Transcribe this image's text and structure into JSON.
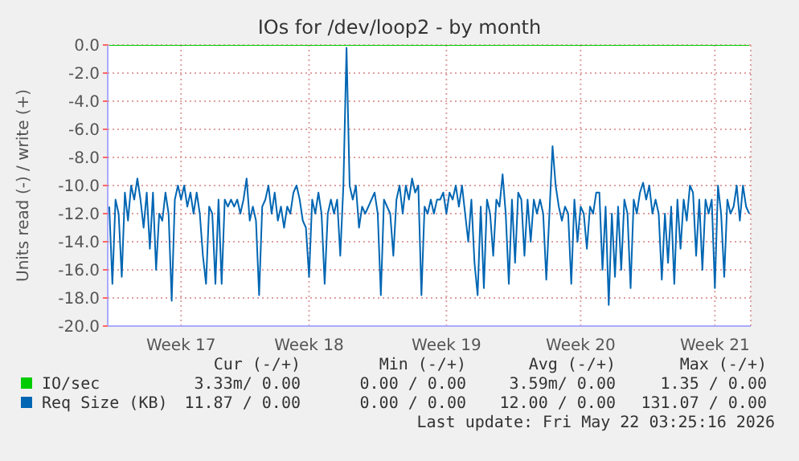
{
  "chart_data": {
    "type": "line",
    "title": "IOs for /dev/loop2 - by month",
    "ylabel": "Units read (-) / write (+)",
    "categories": [
      null,
      null,
      null,
      null,
      null,
      null,
      null,
      null,
      null,
      null,
      null,
      null,
      null,
      null,
      null,
      null,
      null,
      null,
      null,
      null,
      null,
      null,
      null,
      "Week 17",
      null,
      null,
      null,
      null,
      null,
      null,
      null,
      null,
      null,
      null,
      null,
      null,
      null,
      null,
      null,
      null,
      null,
      null,
      null,
      null,
      null,
      null,
      null,
      null,
      null,
      null,
      null,
      null,
      null,
      null,
      null,
      null,
      null,
      null,
      null,
      null,
      null,
      null,
      null,
      null,
      "Week 18",
      null,
      null,
      null,
      null,
      null,
      null,
      null,
      null,
      null,
      null,
      null,
      null,
      null,
      null,
      null,
      null,
      null,
      null,
      null,
      null,
      null,
      null,
      null,
      null,
      null,
      null,
      null,
      null,
      null,
      null,
      null,
      null,
      null,
      null,
      null,
      null,
      null,
      null,
      null,
      null,
      null,
      null,
      null,
      "Week 19",
      null,
      null,
      null,
      null,
      null,
      null,
      null,
      null,
      null,
      null,
      null,
      null,
      null,
      null,
      null,
      null,
      null,
      null,
      null,
      null,
      null,
      null,
      null,
      null,
      null,
      null,
      null,
      null,
      null,
      null,
      null,
      null,
      null,
      null,
      null,
      null,
      null,
      null,
      null,
      null,
      null,
      null,
      "Week 20",
      null,
      null,
      null,
      null,
      null,
      null,
      null,
      null,
      null,
      null,
      null,
      null,
      null,
      null,
      null,
      null,
      null,
      null,
      null,
      null,
      null,
      null,
      null,
      null,
      null,
      null,
      null,
      null,
      null,
      null,
      null,
      null,
      null,
      null,
      null,
      null,
      null,
      null,
      null,
      null,
      null,
      null,
      "Week 21",
      null,
      null,
      null,
      null,
      null,
      null,
      null,
      null,
      null,
      null,
      null
    ],
    "ylim": [
      -20,
      0
    ],
    "yticks": [
      {
        "value": -20,
        "label": "-20.0"
      },
      {
        "value": -18,
        "label": "-18.0"
      },
      {
        "value": -16,
        "label": "-16.0"
      },
      {
        "value": -14,
        "label": "-14.0"
      },
      {
        "value": -12,
        "label": "-12.0"
      },
      {
        "value": -10,
        "label": "-10.0"
      },
      {
        "value": -8,
        "label": "-8.0"
      },
      {
        "value": -6,
        "label": "-6.0"
      },
      {
        "value": -4,
        "label": "-4.0"
      },
      {
        "value": -2,
        "label": "-2.0"
      },
      {
        "value": 0,
        "label": "0.0"
      }
    ],
    "grid": true,
    "legend": "bottom",
    "marker": "none",
    "line_style": "solid",
    "series": [
      {
        "name": "IO/sec",
        "color": "#00cc00",
        "values": [
          0,
          0,
          0,
          0,
          0,
          0,
          0,
          0,
          0,
          0,
          0,
          0,
          0,
          0,
          0,
          0,
          0,
          0,
          0,
          0,
          0,
          0,
          0,
          0,
          0,
          0,
          0,
          0,
          0,
          0,
          0,
          0,
          0,
          0,
          0,
          0,
          0,
          0,
          0,
          0,
          0,
          0,
          0,
          0,
          0,
          0,
          0,
          0,
          0,
          0,
          0,
          0,
          0,
          0,
          0,
          0,
          0,
          0,
          0,
          0,
          0,
          0,
          0,
          0,
          0,
          0,
          0,
          0,
          0,
          0,
          0,
          0,
          0,
          0,
          0,
          0,
          0,
          0,
          0,
          0,
          0,
          0,
          0,
          0,
          0,
          0,
          0,
          0,
          0,
          0,
          0,
          0,
          0,
          0,
          0,
          0,
          0,
          0,
          0,
          0,
          0,
          0,
          0,
          0,
          0,
          0,
          0,
          0,
          0,
          0,
          0,
          0,
          0,
          0,
          0,
          0,
          0,
          0,
          0,
          0,
          0,
          0,
          0,
          0,
          0,
          0,
          0,
          0,
          0,
          0,
          0,
          0,
          0,
          0,
          0,
          0,
          0,
          0,
          0,
          0,
          0,
          0,
          0,
          0,
          0,
          0,
          0,
          0,
          0,
          0,
          0,
          0,
          0,
          0,
          0,
          0,
          0,
          0,
          0,
          0,
          0,
          0,
          0,
          0,
          0,
          0,
          0,
          0,
          0,
          0,
          0,
          0,
          0,
          0,
          0,
          0,
          0,
          0,
          0,
          0,
          0,
          0,
          0,
          0,
          0,
          0,
          0,
          0,
          0,
          0,
          0,
          0,
          0,
          0,
          0,
          0,
          0,
          0,
          0,
          0,
          0,
          0,
          0,
          0,
          0,
          0
        ]
      },
      {
        "name": "Req Size (KB)",
        "color": "#0066b3",
        "values": [
          -11.5,
          -17,
          -11,
          -12,
          -16.5,
          -10.5,
          -12.5,
          -10,
          -11,
          -9.5,
          -11,
          -13,
          -10.5,
          -14.5,
          -10.5,
          -16,
          -12,
          -12.5,
          -10.5,
          -12,
          -18.2,
          -11,
          -10,
          -11,
          -10,
          -11.5,
          -10.5,
          -12,
          -10.5,
          -12,
          -15,
          -17,
          -11.5,
          -12,
          -17,
          -11,
          -17,
          -11,
          -11.5,
          -11,
          -11.5,
          -11,
          -12,
          -11,
          -9.5,
          -12.5,
          -11.5,
          -12.5,
          -17.8,
          -11.5,
          -11,
          -10,
          -12,
          -10.5,
          -12.5,
          -11.5,
          -13,
          -11.5,
          -12,
          -10.5,
          -10,
          -11,
          -12.5,
          -13,
          -16.5,
          -11,
          -12,
          -10.5,
          -12,
          -17,
          -12,
          -11,
          -12,
          -11,
          -15,
          -10,
          -0.2,
          -10,
          -11,
          -10,
          -13,
          -11.5,
          -12,
          -11.5,
          -11,
          -10.5,
          -12,
          -17.8,
          -11,
          -11.5,
          -12,
          -15,
          -11,
          -10,
          -12,
          -10,
          -11,
          -9.5,
          -10.5,
          -10,
          -17.8,
          -11.5,
          -12,
          -11,
          -12,
          -11,
          -11,
          -10.5,
          -12,
          -10.5,
          -11,
          -10,
          -11.5,
          -10,
          -12,
          -14,
          -11,
          -15.5,
          -17.8,
          -11.5,
          -17.3,
          -11,
          -12,
          -15,
          -11,
          -11.5,
          -9.2,
          -12,
          -17,
          -11,
          -15.5,
          -10.5,
          -11,
          -15,
          -11,
          -14,
          -11,
          -12,
          -11,
          -12,
          -16.7,
          -12,
          -7.2,
          -10,
          -11.5,
          -12.5,
          -11.5,
          -12,
          -17,
          -11,
          -14,
          -11.5,
          -12,
          -14.5,
          -11.5,
          -12,
          -10.5,
          -10.5,
          -16,
          -11.5,
          -18.5,
          -12,
          -16.5,
          -11.5,
          -16,
          -11,
          -12,
          -17.3,
          -11,
          -12,
          -10.5,
          -9.8,
          -11,
          -10,
          -12,
          -11,
          -12,
          -16.7,
          -12,
          -15.5,
          -11.5,
          -17,
          -11,
          -14.5,
          -11,
          -12.5,
          -10,
          -10.5,
          -15,
          -11,
          -16,
          -11,
          -12,
          -11,
          -17.3,
          -10,
          -12,
          -16.5,
          -11,
          -12,
          -11.5,
          -10,
          -12.5,
          -10,
          -11.5,
          -12
        ]
      }
    ],
    "annotations": [
      "Cur (-/+)",
      "Min (-/+)",
      "Avg (-/+)",
      "Max (-/+)",
      "3.33m/ 0.00",
      "0.00 / 0.00",
      "3.59m/ 0.00",
      "1.35 / 0.00",
      "11.87 / 0.00",
      "0.00 / 0.00",
      "12.00 / 0.00",
      "131.07 / 0.00",
      "Last update: Fri May 22 03:25:16 2026"
    ]
  }
}
